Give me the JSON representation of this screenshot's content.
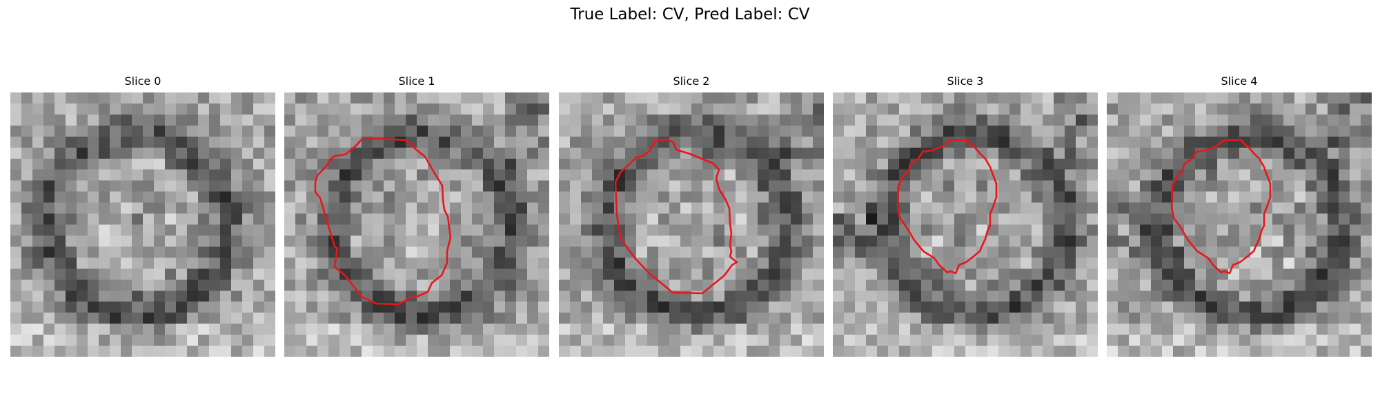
{
  "figure": {
    "title": "True Label: CV, Pred Label: CV"
  },
  "panels": [
    {
      "title": "Slice 0",
      "has_contour": false
    },
    {
      "title": "Slice 1",
      "has_contour": true
    },
    {
      "title": "Slice 2",
      "has_contour": true
    },
    {
      "title": "Slice 3",
      "has_contour": true
    },
    {
      "title": "Slice 4",
      "has_contour": true
    }
  ],
  "style": {
    "contour_color": "#e8161b",
    "colormap": "grayscale"
  }
}
